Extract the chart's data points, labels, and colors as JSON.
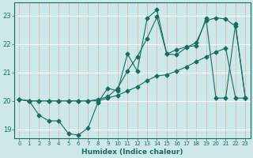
{
  "xlabel": "Humidex (Indice chaleur)",
  "bg_color": "#cce8e8",
  "line_color": "#1a6b60",
  "grid_color_h": "#ffffff",
  "grid_color_v": "#dbb8b8",
  "xlim": [
    -0.5,
    23.5
  ],
  "ylim": [
    18.7,
    23.45
  ],
  "xticks": [
    0,
    1,
    2,
    3,
    4,
    5,
    6,
    7,
    8,
    9,
    10,
    11,
    12,
    13,
    14,
    15,
    16,
    17,
    18,
    19,
    20,
    21,
    22,
    23
  ],
  "yticks": [
    19,
    20,
    21,
    22,
    23
  ],
  "line1_x": [
    0,
    1,
    2,
    3,
    4,
    5,
    6,
    7,
    8,
    9,
    10,
    11,
    12,
    13,
    14,
    15,
    16,
    17,
    18,
    19,
    20,
    21,
    22,
    23
  ],
  "line1_y": [
    20.05,
    20.0,
    19.5,
    19.3,
    19.3,
    18.85,
    18.8,
    19.05,
    19.95,
    20.45,
    20.35,
    21.65,
    21.05,
    22.9,
    23.2,
    21.65,
    21.8,
    21.9,
    21.95,
    22.9,
    20.1,
    20.1,
    22.7,
    20.1
  ],
  "line2_x": [
    0,
    1,
    2,
    3,
    4,
    5,
    6,
    7,
    8,
    9,
    10,
    11,
    12,
    13,
    14,
    15,
    16,
    17,
    18,
    19,
    20,
    21,
    22,
    23
  ],
  "line2_y": [
    20.05,
    20.0,
    20.0,
    20.0,
    20.0,
    20.0,
    20.0,
    20.0,
    20.0,
    20.1,
    20.2,
    20.35,
    20.5,
    20.72,
    20.88,
    20.92,
    21.05,
    21.2,
    21.38,
    21.55,
    21.72,
    21.85,
    20.1,
    20.1
  ],
  "line3_x": [
    0,
    1,
    2,
    3,
    4,
    5,
    6,
    7,
    8,
    9,
    10,
    11,
    12,
    13,
    14,
    15,
    16,
    17,
    18,
    19,
    20,
    21,
    22,
    23
  ],
  "line3_y": [
    20.05,
    20.0,
    20.0,
    20.0,
    20.0,
    20.0,
    20.0,
    20.0,
    20.05,
    20.15,
    20.45,
    21.05,
    21.55,
    22.2,
    22.95,
    21.65,
    21.62,
    21.88,
    22.05,
    22.82,
    22.92,
    22.88,
    22.62,
    20.1
  ]
}
